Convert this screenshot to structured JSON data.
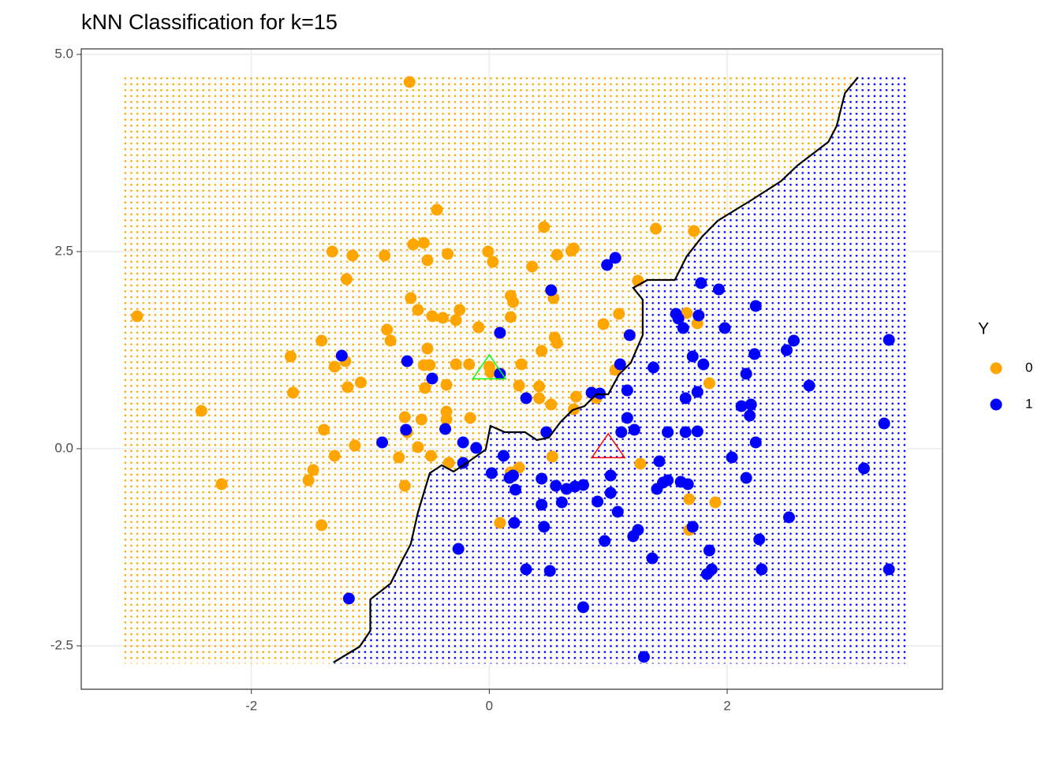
{
  "chart_data": {
    "type": "scatter",
    "title": "kNN Classification for k=15",
    "xlim": [
      -3.43,
      3.81
    ],
    "ylim": [
      -3.05,
      5.07
    ],
    "xticks": [
      -2,
      0,
      2
    ],
    "yticks": [
      {
        "value": -2.5,
        "label": "-2.5"
      },
      {
        "value": 0,
        "label": "0.0"
      },
      {
        "value": 2.5,
        "label": "2.5"
      },
      {
        "value": 5,
        "label": "5.0"
      }
    ],
    "grid": true,
    "legend_title": "Y",
    "legend_position": "right",
    "background_grid": {
      "xlim": [
        -3.07,
        3.5
      ],
      "ylim": [
        -2.71,
        4.71
      ]
    },
    "series": [
      {
        "name": "0",
        "color": "#ffa500",
        "x": [
          -2.96,
          -2.42,
          -2.25,
          -1.67,
          -1.65,
          -1.41,
          -1.52,
          -1.48,
          -1.41,
          -1.39,
          -1.32,
          -1.15,
          -1.2,
          -1.3,
          -1.3,
          -1.21,
          -1.19,
          -1.08,
          -1.13,
          -0.88,
          -0.86,
          -0.83,
          -0.67,
          -0.64,
          -0.55,
          -0.66,
          -0.6,
          -0.48,
          -0.52,
          -0.44,
          -0.35,
          -0.39,
          -0.28,
          -0.25,
          -0.52,
          -0.55,
          -0.5,
          -0.28,
          -0.09,
          -0.01,
          0.03,
          0.0,
          0.01,
          0.18,
          0.2,
          0.18,
          0.36,
          0.46,
          0.54,
          0.57,
          0.69,
          0.71,
          0.55,
          0.57,
          0.44,
          0.27,
          0.25,
          0.42,
          0.42,
          0.52,
          0.73,
          0.71,
          0.9,
          0.96,
          1.06,
          1.09,
          1.25,
          1.4,
          1.72,
          1.66,
          1.75,
          1.85,
          1.68,
          1.9,
          1.68,
          1.27,
          0.09,
          0.18,
          0.25,
          0.53,
          -0.16,
          -0.36,
          -0.36,
          -0.34,
          -0.49,
          -0.57,
          -0.71,
          -0.69,
          -0.76,
          -0.71,
          -0.6,
          -0.17,
          -0.36,
          -0.54
        ],
        "y": [
          1.68,
          0.48,
          -0.45,
          1.17,
          0.71,
          1.37,
          -0.4,
          -0.27,
          -0.97,
          0.24,
          2.5,
          2.45,
          2.15,
          1.04,
          -0.09,
          1.11,
          0.78,
          0.84,
          0.04,
          2.45,
          1.51,
          1.37,
          4.65,
          2.59,
          2.61,
          1.91,
          1.76,
          1.68,
          2.39,
          3.03,
          2.47,
          1.66,
          1.63,
          1.76,
          1.27,
          1.06,
          1.06,
          1.07,
          1.54,
          2.5,
          2.37,
          1.04,
          0.97,
          1.94,
          1.86,
          1.67,
          2.31,
          2.81,
          1.91,
          2.46,
          2.51,
          2.54,
          1.41,
          1.34,
          1.24,
          1.07,
          0.8,
          0.79,
          0.64,
          0.56,
          0.66,
          0.5,
          0.64,
          1.58,
          1.0,
          1.71,
          2.13,
          2.79,
          2.76,
          1.72,
          1.59,
          0.83,
          -0.64,
          -0.68,
          -1.03,
          -0.19,
          -0.94,
          -0.3,
          -0.24,
          -0.1,
          0.39,
          0.37,
          0.47,
          -0.18,
          -0.09,
          0.37,
          0.4,
          0.21,
          -0.11,
          -0.47,
          0.02,
          1.07,
          0.81,
          0.77
        ]
      },
      {
        "name": "1",
        "color": "#0000ff",
        "x": [
          -1.24,
          -1.18,
          -0.9,
          -0.69,
          -0.7,
          -0.48,
          -0.37,
          -0.26,
          -0.22,
          -0.22,
          -0.11,
          0.02,
          0.09,
          0.09,
          0.12,
          0.17,
          0.2,
          0.22,
          0.21,
          0.31,
          0.31,
          0.44,
          0.44,
          0.46,
          0.48,
          0.51,
          0.52,
          0.56,
          0.61,
          0.65,
          0.72,
          0.79,
          0.79,
          0.86,
          0.93,
          0.91,
          0.97,
          0.99,
          1.06,
          1.02,
          1.02,
          1.08,
          1.1,
          1.11,
          1.16,
          1.16,
          1.18,
          1.21,
          1.25,
          1.22,
          1.3,
          1.37,
          1.38,
          1.41,
          1.43,
          1.46,
          1.5,
          1.5,
          1.57,
          1.59,
          1.63,
          1.61,
          1.67,
          1.65,
          1.65,
          1.71,
          1.71,
          1.75,
          1.75,
          1.78,
          1.8,
          1.76,
          1.85,
          1.87,
          1.83,
          1.93,
          1.98,
          2.04,
          2.16,
          2.12,
          2.16,
          2.19,
          2.2,
          2.23,
          2.24,
          2.24,
          2.27,
          2.29,
          2.5,
          2.56,
          2.52,
          2.69,
          3.15,
          3.32,
          3.36,
          3.36
        ],
        "y": [
          1.18,
          -1.9,
          0.08,
          1.11,
          0.24,
          0.89,
          0.25,
          -1.27,
          -0.18,
          0.08,
          0.01,
          -0.31,
          1.47,
          0.95,
          -0.09,
          -0.37,
          -0.34,
          -0.52,
          -0.94,
          0.64,
          -1.53,
          -0.38,
          -0.71,
          -0.99,
          0.21,
          -1.55,
          2.01,
          -0.47,
          -0.68,
          -0.51,
          -0.48,
          -0.46,
          -2.01,
          0.71,
          0.7,
          -0.67,
          -1.17,
          2.33,
          2.42,
          -0.34,
          -0.56,
          -0.8,
          1.07,
          0.21,
          0.74,
          0.39,
          1.44,
          -1.11,
          -1.03,
          0.24,
          -2.64,
          -1.39,
          1.03,
          -0.51,
          -0.16,
          -0.43,
          0.21,
          -0.4,
          1.71,
          1.65,
          1.53,
          -0.42,
          -0.45,
          0.64,
          0.21,
          -0.99,
          1.17,
          0.22,
          0.72,
          2.1,
          1.07,
          1.69,
          -1.29,
          -1.53,
          -1.59,
          2.02,
          1.53,
          -0.11,
          0.95,
          0.54,
          -0.37,
          0.42,
          0.56,
          1.2,
          0.08,
          1.81,
          -1.15,
          -1.53,
          1.25,
          1.37,
          -0.87,
          0.8,
          -0.25,
          0.32,
          1.38,
          -1.53
        ]
      }
    ],
    "boundary": {
      "color": "#000000",
      "x": [
        -1.31,
        -1.09,
        -1.0,
        -1.0,
        -0.83,
        -0.73,
        -0.66,
        -0.6,
        -0.5,
        -0.4,
        -0.3,
        -0.17,
        -0.03,
        0.01,
        0.13,
        0.3,
        0.4,
        0.5,
        0.6,
        0.7,
        0.8,
        0.9,
        1.0,
        1.09,
        1.19,
        1.29,
        1.29,
        1.21,
        1.33,
        1.56,
        1.66,
        1.79,
        1.92,
        2.19,
        2.45,
        2.59,
        2.85,
        2.92,
        2.99,
        3.1
      ],
      "y": [
        -2.71,
        -2.51,
        -2.31,
        -1.91,
        -1.71,
        -1.41,
        -1.21,
        -0.81,
        -0.31,
        -0.21,
        -0.29,
        -0.16,
        -0.01,
        0.29,
        0.21,
        0.21,
        0.11,
        0.14,
        0.34,
        0.49,
        0.54,
        0.69,
        0.69,
        0.94,
        1.09,
        1.44,
        1.89,
        2.04,
        2.14,
        2.14,
        2.44,
        2.69,
        2.89,
        3.14,
        3.39,
        3.59,
        3.89,
        4.09,
        4.51,
        4.71
      ]
    },
    "test_points": [
      {
        "x": 0,
        "y": 1,
        "color": "#00ff00"
      },
      {
        "x": 1,
        "y": 0,
        "color": "#ff0000"
      }
    ]
  }
}
